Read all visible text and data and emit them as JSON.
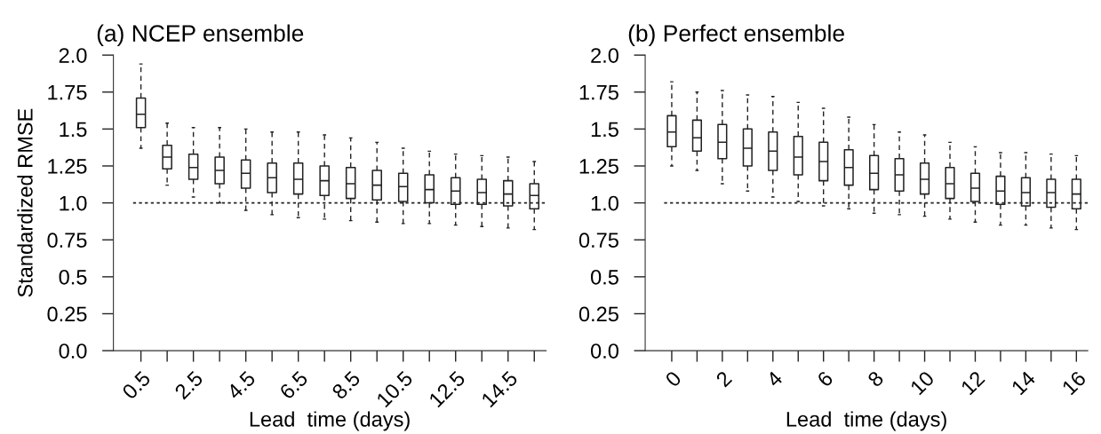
{
  "chart_data": [
    {
      "type": "box",
      "title": "(a) NCEP ensemble",
      "xlabel": "Lead  time (days)",
      "ylabel": "Standardized RMSE",
      "categories": [
        "0.5",
        null,
        "2.5",
        null,
        "4.5",
        null,
        "6.5",
        null,
        "8.5",
        null,
        "10.5",
        null,
        "12.5",
        null,
        "14.5",
        null
      ],
      "boxes": [
        {
          "low": 1.37,
          "q1": 1.51,
          "median": 1.6,
          "q3": 1.71,
          "high": 1.94
        },
        {
          "low": 1.12,
          "q1": 1.23,
          "median": 1.31,
          "q3": 1.39,
          "high": 1.54
        },
        {
          "low": 1.04,
          "q1": 1.16,
          "median": 1.24,
          "q3": 1.33,
          "high": 1.51
        },
        {
          "low": 1.0,
          "q1": 1.13,
          "median": 1.22,
          "q3": 1.31,
          "high": 1.51
        },
        {
          "low": 0.95,
          "q1": 1.1,
          "median": 1.2,
          "q3": 1.29,
          "high": 1.5
        },
        {
          "low": 0.92,
          "q1": 1.07,
          "median": 1.17,
          "q3": 1.27,
          "high": 1.48
        },
        {
          "low": 0.9,
          "q1": 1.06,
          "median": 1.16,
          "q3": 1.27,
          "high": 1.48
        },
        {
          "low": 0.89,
          "q1": 1.05,
          "median": 1.15,
          "q3": 1.25,
          "high": 1.46
        },
        {
          "low": 0.88,
          "q1": 1.03,
          "median": 1.13,
          "q3": 1.24,
          "high": 1.44
        },
        {
          "low": 0.87,
          "q1": 1.02,
          "median": 1.12,
          "q3": 1.22,
          "high": 1.41
        },
        {
          "low": 0.86,
          "q1": 1.01,
          "median": 1.11,
          "q3": 1.2,
          "high": 1.37
        },
        {
          "low": 0.86,
          "q1": 1.0,
          "median": 1.09,
          "q3": 1.19,
          "high": 1.35
        },
        {
          "low": 0.85,
          "q1": 0.99,
          "median": 1.08,
          "q3": 1.17,
          "high": 1.33
        },
        {
          "low": 0.84,
          "q1": 0.99,
          "median": 1.07,
          "q3": 1.16,
          "high": 1.32
        },
        {
          "low": 0.83,
          "q1": 0.98,
          "median": 1.06,
          "q3": 1.15,
          "high": 1.31
        },
        {
          "low": 0.82,
          "q1": 0.96,
          "median": 1.05,
          "q3": 1.13,
          "high": 1.28
        }
      ],
      "ylim": [
        0,
        2
      ],
      "yticks": [
        {
          "value": 0,
          "label": "0.0"
        },
        0.25,
        0.5,
        0.75,
        {
          "value": 1,
          "label": "1.0"
        },
        1.25,
        1.5,
        1.75,
        {
          "value": 2,
          "label": "2.0"
        }
      ],
      "ref_lines": [
        {
          "axis": "y",
          "value": 1,
          "line_style": "dotted"
        }
      ],
      "grid": false,
      "legend": false
    },
    {
      "type": "box",
      "title": "(b) Perfect ensemble",
      "xlabel": "Lead  time (days)",
      "categories": [
        "0",
        null,
        "2",
        null,
        "4",
        null,
        "6",
        null,
        "8",
        null,
        "10",
        null,
        "12",
        null,
        "14",
        null,
        "16"
      ],
      "boxes": [
        {
          "low": 1.25,
          "q1": 1.38,
          "median": 1.48,
          "q3": 1.59,
          "high": 1.82
        },
        {
          "low": 1.22,
          "q1": 1.35,
          "median": 1.44,
          "q3": 1.56,
          "high": 1.75
        },
        {
          "low": 1.13,
          "q1": 1.3,
          "median": 1.41,
          "q3": 1.53,
          "high": 1.76
        },
        {
          "low": 1.08,
          "q1": 1.25,
          "median": 1.37,
          "q3": 1.5,
          "high": 1.73
        },
        {
          "low": 1.04,
          "q1": 1.22,
          "median": 1.35,
          "q3": 1.48,
          "high": 1.72
        },
        {
          "low": 1.01,
          "q1": 1.19,
          "median": 1.31,
          "q3": 1.45,
          "high": 1.68
        },
        {
          "low": 0.98,
          "q1": 1.15,
          "median": 1.28,
          "q3": 1.41,
          "high": 1.64
        },
        {
          "low": 0.96,
          "q1": 1.12,
          "median": 1.24,
          "q3": 1.36,
          "high": 1.58
        },
        {
          "low": 0.93,
          "q1": 1.09,
          "median": 1.2,
          "q3": 1.32,
          "high": 1.53
        },
        {
          "low": 0.92,
          "q1": 1.08,
          "median": 1.19,
          "q3": 1.3,
          "high": 1.48
        },
        {
          "low": 0.91,
          "q1": 1.06,
          "median": 1.16,
          "q3": 1.27,
          "high": 1.46
        },
        {
          "low": 0.89,
          "q1": 1.03,
          "median": 1.13,
          "q3": 1.24,
          "high": 1.41
        },
        {
          "low": 0.87,
          "q1": 1.01,
          "median": 1.1,
          "q3": 1.2,
          "high": 1.38
        },
        {
          "low": 0.85,
          "q1": 0.99,
          "median": 1.08,
          "q3": 1.18,
          "high": 1.34
        },
        {
          "low": 0.85,
          "q1": 0.98,
          "median": 1.07,
          "q3": 1.17,
          "high": 1.34
        },
        {
          "low": 0.83,
          "q1": 0.97,
          "median": 1.07,
          "q3": 1.16,
          "high": 1.33
        },
        {
          "low": 0.82,
          "q1": 0.96,
          "median": 1.06,
          "q3": 1.16,
          "high": 1.32
        }
      ],
      "ylim": [
        0,
        2
      ],
      "yticks": [
        {
          "value": 0,
          "label": "0.0"
        },
        0.25,
        0.5,
        0.75,
        {
          "value": 1,
          "label": "1.0"
        },
        1.25,
        1.5,
        1.75,
        {
          "value": 2,
          "label": "2.0"
        }
      ],
      "ref_lines": [
        {
          "axis": "y",
          "value": 1,
          "line_style": "dotted"
        }
      ],
      "grid": false,
      "legend": false
    }
  ]
}
